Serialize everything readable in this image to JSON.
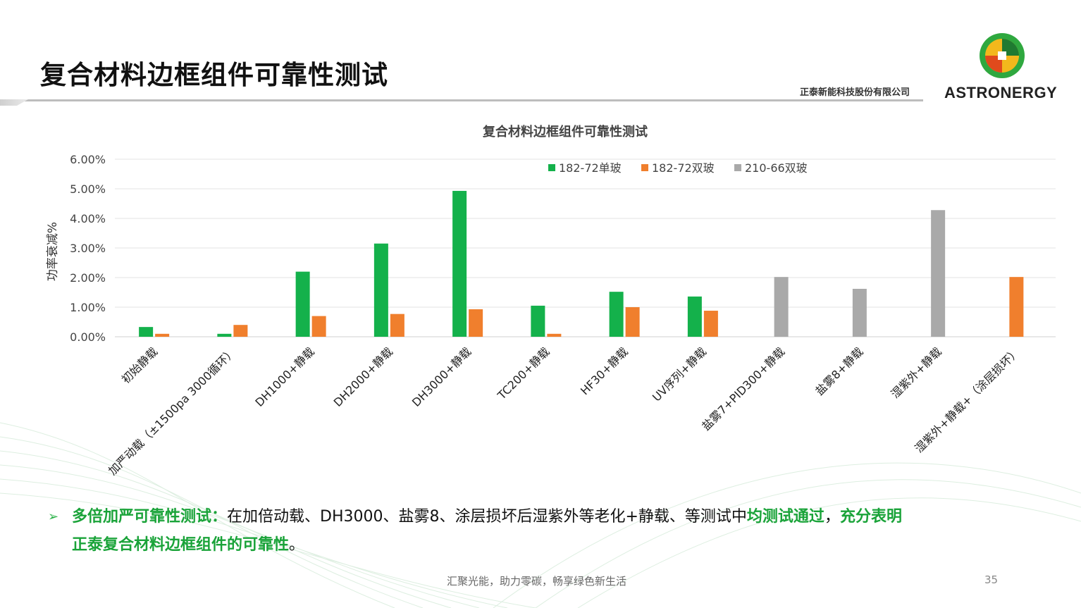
{
  "slide": {
    "title": "复合材料边框组件可靠性测试",
    "company_name": "正泰新能科技股份有限公司",
    "logo_text": "ASTRONERGY",
    "footer_slogan": "汇聚光能，助力零碳，畅享绿色新生活",
    "page_number": "35"
  },
  "bullet": {
    "arrow": "➢",
    "label": "多倍加严可靠性测试：",
    "text1": "在加倍动载、DH3000、盐雾8、涂层损坏后湿紫外等老化+静载、等测试中",
    "highlight1": "均测试通过",
    "comma": "，",
    "highlight2": "充分表明",
    "highlight3": "正泰复合材料边框组件的可靠性",
    "end": "。"
  },
  "colors": {
    "green": "#14b14b",
    "orange": "#f07f2d",
    "gray": "#a9a9a9",
    "accent_text": "#1aa339"
  },
  "chart_data": {
    "type": "bar",
    "title": "复合材料边框组件可靠性测试",
    "ylabel": "功率衰减%",
    "xlabel": "",
    "ylim": [
      0,
      0.06
    ],
    "ytick_labels": [
      "0.00%",
      "1.00%",
      "2.00%",
      "3.00%",
      "4.00%",
      "5.00%",
      "6.00%"
    ],
    "grid": true,
    "legend_position": "top-right",
    "categories": [
      "初始静载",
      "加严动载（±1500pa 3000循环）",
      "DH1000+静载",
      "DH2000+静载",
      "DH3000+静载",
      "TC200+静载",
      "HF30+静载",
      "UV序列+静载",
      "盐雾7+PID300+静载",
      "盐雾8+静载",
      "湿紫外+静载",
      "湿紫外+静载+（涂层损坏）"
    ],
    "series": [
      {
        "name": "182-72单玻",
        "color": "#14b14b",
        "values": [
          0.0033,
          0.001,
          0.022,
          0.0315,
          0.0493,
          0.0105,
          0.0152,
          0.0136,
          null,
          null,
          null,
          null
        ]
      },
      {
        "name": "182-72双玻",
        "color": "#f07f2d",
        "values": [
          0.001,
          0.004,
          0.007,
          0.0077,
          0.0093,
          0.001,
          0.01,
          0.0088,
          null,
          null,
          null,
          0.0202
        ]
      },
      {
        "name": "210-66双玻",
        "color": "#a9a9a9",
        "values": [
          null,
          null,
          null,
          null,
          null,
          null,
          null,
          null,
          0.0202,
          0.0162,
          0.0428,
          null
        ]
      }
    ]
  }
}
